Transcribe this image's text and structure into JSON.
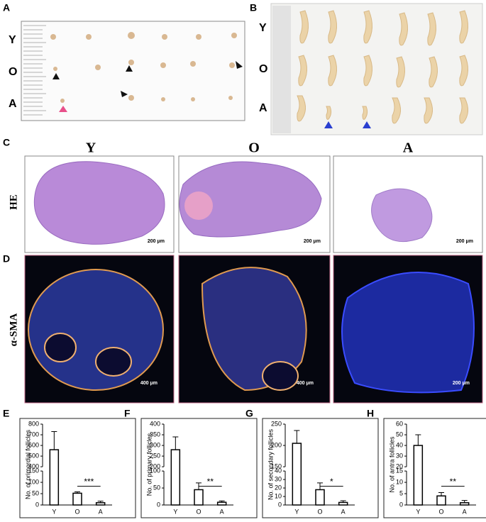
{
  "panels": {
    "a": {
      "label": "A",
      "rows": [
        "Y",
        "O",
        "A"
      ]
    },
    "b": {
      "label": "B",
      "rows": [
        "Y",
        "O",
        "A"
      ]
    },
    "c": {
      "label": "C",
      "columns": [
        "Y",
        "O",
        "A"
      ],
      "row": "HE",
      "scales": [
        "200 μm",
        "200 μm",
        "200 μm"
      ]
    },
    "d": {
      "label": "D",
      "row": "α-SMA",
      "scales": [
        "400 μm",
        "400 μm",
        "200 μm"
      ]
    }
  },
  "chart_data": [
    {
      "type": "bar",
      "panel": "E",
      "ylabel": "No. of primordial follicles",
      "categories": [
        "Y",
        "O",
        "A"
      ],
      "values": [
        560,
        52,
        10
      ],
      "errors": [
        170,
        6,
        7
      ],
      "ylim": [
        0,
        800
      ],
      "ybreak": [
        150,
        400
      ],
      "yticks": [
        0,
        50,
        100,
        150,
        400,
        500,
        600,
        700,
        800
      ],
      "annotation": "***"
    },
    {
      "type": "bar",
      "panel": "F",
      "ylabel": "No. of primary follicles",
      "categories": [
        "Y",
        "O",
        "A"
      ],
      "values": [
        280,
        45,
        8
      ],
      "errors": [
        60,
        20,
        4
      ],
      "ylim": [
        0,
        400
      ],
      "ybreak": [
        100,
        200
      ],
      "yticks": [
        0,
        50,
        100,
        200,
        250,
        300,
        350,
        400
      ],
      "annotation": "**"
    },
    {
      "type": "bar",
      "panel": "G",
      "ylabel": "No. of secondary follicles",
      "categories": [
        "Y",
        "O",
        "A"
      ],
      "values": [
        205,
        18,
        3
      ],
      "errors": [
        30,
        8,
        2
      ],
      "ylim": [
        0,
        250
      ],
      "ybreak": [
        40,
        150
      ],
      "yticks": [
        0,
        10,
        20,
        30,
        40,
        150,
        200,
        250
      ],
      "annotation": "*"
    },
    {
      "type": "bar",
      "panel": "H",
      "ylabel": "No. of antra follicles",
      "categories": [
        "Y",
        "O",
        "A"
      ],
      "values": [
        40,
        4,
        1
      ],
      "errors": [
        10,
        1.5,
        1
      ],
      "ylim": [
        0,
        60
      ],
      "ybreak": [
        15,
        20
      ],
      "yticks": [
        0,
        5,
        10,
        15,
        20,
        30,
        40,
        50,
        60
      ],
      "annotation": "**"
    }
  ]
}
